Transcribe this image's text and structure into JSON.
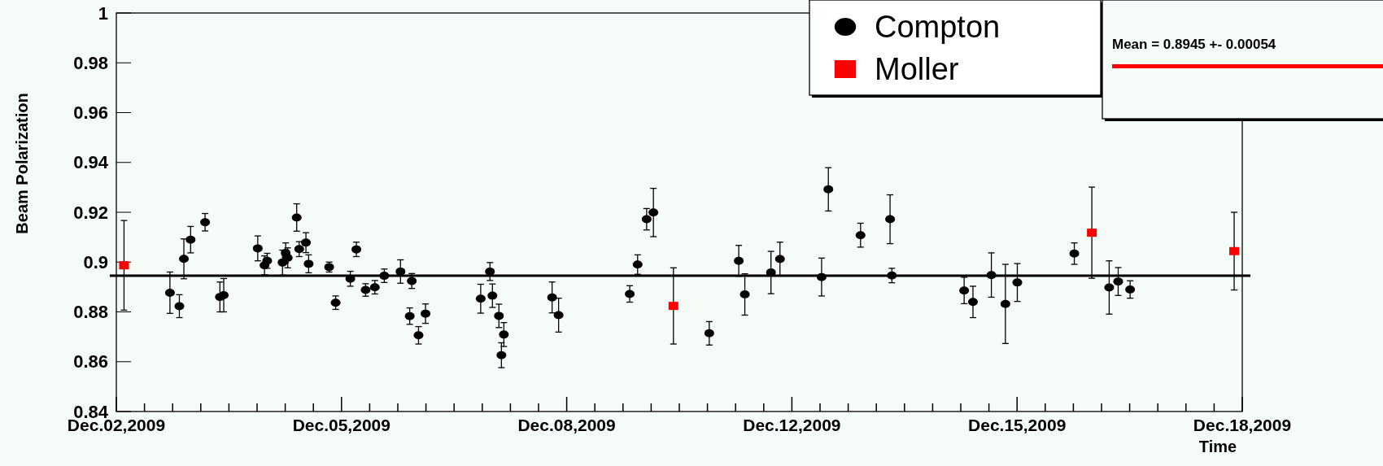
{
  "chart_data": {
    "type": "scatter",
    "xlabel": "Time",
    "ylabel": "Beam Polarization",
    "xlim": [
      "2009-12-02T12:00",
      "2009-12-18T12:00"
    ],
    "ylim": [
      0.84,
      1
    ],
    "xticks": [
      {
        "value": "2009-12-02T12:00",
        "label": "Dec.02,2009"
      },
      {
        "value": "2009-12-02T21:36",
        "label": null
      },
      {
        "value": "2009-12-03T07:12",
        "label": null
      },
      {
        "value": "2009-12-03T16:48",
        "label": null
      },
      {
        "value": "2009-12-04T02:24",
        "label": null
      },
      {
        "value": "2009-12-04T12:00",
        "label": null
      },
      {
        "value": "2009-12-04T21:36",
        "label": null
      },
      {
        "value": "2009-12-05T07:12",
        "label": null
      },
      {
        "value": "2009-12-05T16:48",
        "label": "Dec.05,2009"
      },
      {
        "value": "2009-12-06T02:24",
        "label": null
      },
      {
        "value": "2009-12-06T12:00",
        "label": null
      },
      {
        "value": "2009-12-06T21:36",
        "label": null
      },
      {
        "value": "2009-12-07T07:12",
        "label": null
      },
      {
        "value": "2009-12-07T16:48",
        "label": null
      },
      {
        "value": "2009-12-08T02:24",
        "label": null
      },
      {
        "value": "2009-12-08T12:00",
        "label": null
      },
      {
        "value": "2009-12-08T21:36",
        "label": "Dec.08,2009"
      },
      {
        "value": "2009-12-09T07:12",
        "label": null
      },
      {
        "value": "2009-12-09T16:48",
        "label": null
      },
      {
        "value": "2009-12-10T02:24",
        "label": null
      },
      {
        "value": "2009-12-10T12:00",
        "label": null
      },
      {
        "value": "2009-12-10T21:36",
        "label": null
      },
      {
        "value": "2009-12-11T07:12",
        "label": null
      },
      {
        "value": "2009-12-11T16:48",
        "label": null
      },
      {
        "value": "2009-12-12T02:24",
        "label": "Dec.12,2009"
      },
      {
        "value": "2009-12-12T12:00",
        "label": null
      },
      {
        "value": "2009-12-12T21:36",
        "label": null
      },
      {
        "value": "2009-12-13T07:12",
        "label": null
      },
      {
        "value": "2009-12-13T16:48",
        "label": null
      },
      {
        "value": "2009-12-14T02:24",
        "label": null
      },
      {
        "value": "2009-12-14T12:00",
        "label": null
      },
      {
        "value": "2009-12-14T21:36",
        "label": null
      },
      {
        "value": "2009-12-15T07:12",
        "label": "Dec.15,2009"
      },
      {
        "value": "2009-12-15T16:48",
        "label": null
      },
      {
        "value": "2009-12-16T02:24",
        "label": null
      },
      {
        "value": "2009-12-16T12:00",
        "label": null
      },
      {
        "value": "2009-12-16T21:36",
        "label": null
      },
      {
        "value": "2009-12-17T07:12",
        "label": null
      },
      {
        "value": "2009-12-17T16:48",
        "label": null
      },
      {
        "value": "2009-12-18T02:24",
        "label": null
      },
      {
        "value": "2009-12-18T12:00",
        "label": "Dec.18,2009"
      }
    ],
    "yticks": [
      0.84,
      0.86,
      0.88,
      0.9,
      0.92,
      0.94,
      0.96,
      0.98,
      1
    ],
    "legend": "top right",
    "grid": false,
    "ref_lines": [
      {
        "axis": "y",
        "value": 0.8945,
        "color": "#000000"
      }
    ],
    "annotations": [
      "Mean = 0.8945 +- 0.00054"
    ],
    "series": [
      {
        "name": "Compton",
        "color": "#000000",
        "marker": "circle",
        "x": [
          "2009-12-03T06:17",
          "2009-12-03T09:30",
          "2009-12-03T11:02",
          "2009-12-03T13:20",
          "2009-12-03T18:16",
          "2009-12-03T23:20",
          "2009-12-04T00:38",
          "2009-12-04T12:14",
          "2009-12-04T14:32",
          "2009-12-04T15:27",
          "2009-12-04T20:41",
          "2009-12-04T21:45",
          "2009-12-04T22:27",
          "2009-12-05T01:31",
          "2009-12-05T02:22",
          "2009-12-05T04:40",
          "2009-12-05T05:35",
          "2009-12-05T12:35",
          "2009-12-05T14:48",
          "2009-12-05T19:48",
          "2009-12-05T21:52",
          "2009-12-06T01:01",
          "2009-12-06T04:10",
          "2009-12-06T07:23",
          "2009-12-06T12:55",
          "2009-12-06T16:04",
          "2009-12-06T16:46",
          "2009-12-06T19:04",
          "2009-12-06T21:27",
          "2009-12-07T16:16",
          "2009-12-07T19:25",
          "2009-12-07T20:16",
          "2009-12-07T22:29",
          "2009-12-07T23:20",
          "2009-12-08T00:10",
          "2009-12-08T16:37",
          "2009-12-08T18:50",
          "2009-12-09T19:06",
          "2009-12-09T21:47",
          "2009-12-10T00:52",
          "2009-12-10T03:10",
          "2009-12-10T22:13",
          "2009-12-11T08:17",
          "2009-12-11T10:21",
          "2009-12-11T19:16",
          "2009-12-11T22:20",
          "2009-12-12T12:32",
          "2009-12-12T14:50",
          "2009-12-13T01:49",
          "2009-12-13T11:53",
          "2009-12-13T12:30",
          "2009-12-14T13:09",
          "2009-12-14T16:09",
          "2009-12-14T22:26",
          "2009-12-15T03:13",
          "2009-12-15T07:17",
          "2009-12-16T02:43",
          "2009-12-16T14:37",
          "2009-12-16T17:41",
          "2009-12-16T21:45"
        ],
        "values": [
          0.8877,
          0.8823,
          0.9013,
          0.909,
          0.916,
          0.886,
          0.8867,
          0.9055,
          0.8987,
          0.9005,
          0.8998,
          0.9037,
          0.9017,
          0.9179,
          0.9052,
          0.9078,
          0.8993,
          0.898,
          0.8837,
          0.8933,
          0.9051,
          0.8888,
          0.8899,
          0.8945,
          0.8962,
          0.8783,
          0.8924,
          0.8706,
          0.8793,
          0.8853,
          0.8962,
          0.8865,
          0.8784,
          0.8626,
          0.8709,
          0.8858,
          0.8787,
          0.8872,
          0.899,
          0.9172,
          0.9199,
          0.8714,
          0.9005,
          0.887,
          0.8958,
          0.9012,
          0.894,
          0.9292,
          0.9108,
          0.9172,
          0.8946,
          0.8886,
          0.884,
          0.8948,
          0.8832,
          0.8918,
          0.9034,
          0.8898,
          0.8922,
          0.889
        ],
        "errors": [
          0.0083,
          0.0046,
          0.008,
          0.0053,
          0.0035,
          0.006,
          0.0067,
          0.005,
          0.0038,
          0.003,
          0.005,
          0.004,
          0.004,
          0.0055,
          0.003,
          0.004,
          0.0036,
          0.002,
          0.0027,
          0.003,
          0.0029,
          0.0025,
          0.0027,
          0.0027,
          0.0047,
          0.0033,
          0.003,
          0.0035,
          0.0039,
          0.0058,
          0.0036,
          0.0047,
          0.0047,
          0.005,
          0.0048,
          0.0062,
          0.0068,
          0.0033,
          0.0039,
          0.0043,
          0.0097,
          0.0047,
          0.0062,
          0.0083,
          0.0085,
          0.0068,
          0.0076,
          0.0087,
          0.0048,
          0.0098,
          0.0029,
          0.0053,
          0.0063,
          0.0089,
          0.0159,
          0.0076,
          0.0043,
          0.0107,
          0.0056,
          0.0035
        ]
      },
      {
        "name": "Moller",
        "color": "#ff0000",
        "marker": "square",
        "x": [
          "2009-12-02T14:37",
          "2009-12-10T10:00",
          "2009-12-16T08:42",
          "2009-12-18T09:14"
        ],
        "values": [
          0.8987,
          0.8824,
          0.9118,
          0.9044
        ],
        "errors": [
          0.018,
          0.0153,
          0.0183,
          0.0156
        ]
      }
    ]
  }
}
